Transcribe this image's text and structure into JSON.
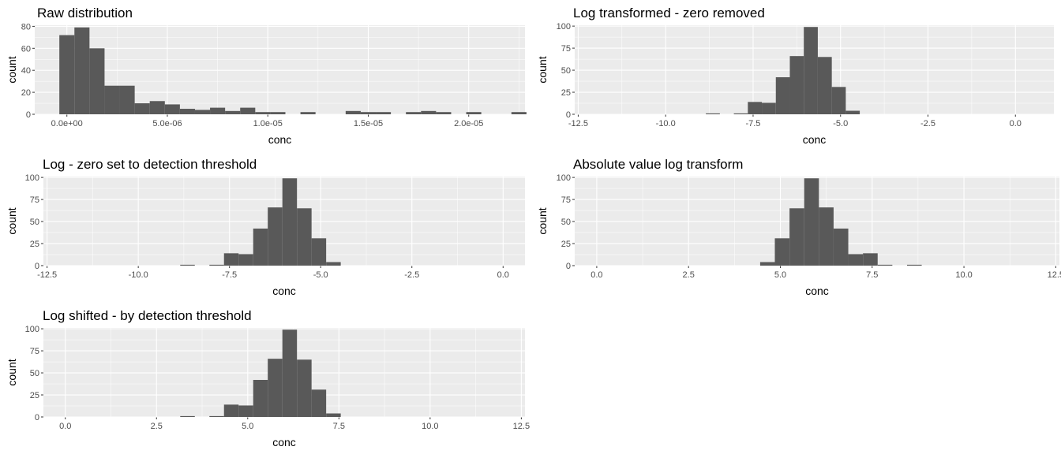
{
  "colors": {
    "panel": "#ebebeb",
    "grid_major": "#ffffff",
    "bar": "#595959",
    "tick_text": "#4d4d4d"
  },
  "chart_data": [
    {
      "type": "bar",
      "title": "Raw distribution",
      "xlabel": "conc",
      "ylabel": "count",
      "xlim": [
        -1.6e-06,
        2.28e-05
      ],
      "ylim": [
        0,
        81
      ],
      "x_ticks": [
        0,
        5e-06,
        1e-05,
        1.5e-05,
        2e-05
      ],
      "x_tick_labels": [
        "0.0e+00",
        "5.0e-06",
        "1.0e-05",
        "1.5e-05",
        "2.0e-05"
      ],
      "y_ticks": [
        0,
        20,
        40,
        60,
        80
      ],
      "y_tick_labels": [
        "0",
        "20",
        "40",
        "60",
        "80"
      ],
      "grid": true,
      "bins": {
        "start": -3.75e-07,
        "width": 7.5e-07,
        "counts": [
          72,
          79,
          60,
          26,
          26,
          10,
          12,
          9,
          5,
          4,
          6,
          3,
          6,
          2,
          2,
          0,
          2,
          0,
          0,
          3,
          2,
          2,
          0,
          2,
          3,
          2,
          0,
          2,
          0,
          0,
          2
        ]
      }
    },
    {
      "type": "bar",
      "title": "Log transformed - zero removed",
      "xlabel": "conc",
      "ylabel": "count",
      "xlim": [
        -12.6,
        1.1
      ],
      "ylim": [
        0,
        101
      ],
      "x_ticks": [
        -12.5,
        -10,
        -7.5,
        -5,
        -2.5,
        0
      ],
      "x_tick_labels": [
        "-12.5",
        "-10.0",
        "-7.5",
        "-5.0",
        "-2.5",
        "0.0"
      ],
      "y_ticks": [
        0,
        25,
        50,
        75,
        100
      ],
      "y_tick_labels": [
        "0",
        "25",
        "50",
        "75",
        "100"
      ],
      "grid": true,
      "bins": {
        "start": -8.85,
        "width": 0.4,
        "counts": [
          1,
          0,
          1,
          14,
          13,
          42,
          66,
          99,
          65,
          31,
          4
        ]
      }
    },
    {
      "type": "bar",
      "title": "Log - zero set to detection threshold",
      "xlabel": "conc",
      "ylabel": "count",
      "xlim": [
        -12.6,
        0.6
      ],
      "ylim": [
        0,
        101
      ],
      "x_ticks": [
        -12.5,
        -10,
        -7.5,
        -5,
        -2.5,
        0
      ],
      "x_tick_labels": [
        "-12.5",
        "-10.0",
        "-7.5",
        "-5.0",
        "-2.5",
        "0.0"
      ],
      "y_ticks": [
        0,
        25,
        50,
        75,
        100
      ],
      "y_tick_labels": [
        "0",
        "25",
        "50",
        "75",
        "100"
      ],
      "grid": true,
      "bins": {
        "start": -8.85,
        "width": 0.4,
        "counts": [
          1,
          0,
          1,
          14,
          13,
          42,
          66,
          99,
          65,
          31,
          4
        ]
      }
    },
    {
      "type": "bar",
      "title": "Absolute value log transform",
      "xlabel": "conc",
      "ylabel": "count",
      "xlim": [
        -0.6,
        12.6
      ],
      "ylim": [
        0,
        101
      ],
      "x_ticks": [
        0,
        2.5,
        5,
        7.5,
        10,
        12.5
      ],
      "x_tick_labels": [
        "0.0",
        "2.5",
        "5.0",
        "7.5",
        "10.0",
        "12.5"
      ],
      "y_ticks": [
        0,
        25,
        50,
        75,
        100
      ],
      "y_tick_labels": [
        "0",
        "25",
        "50",
        "75",
        "100"
      ],
      "grid": true,
      "bins": {
        "start": 4.45,
        "width": 0.4,
        "counts": [
          4,
          31,
          65,
          99,
          66,
          42,
          13,
          14,
          1,
          0,
          1
        ]
      }
    },
    {
      "type": "bar",
      "title": "Log shifted - by detection threshold",
      "xlabel": "conc",
      "ylabel": "count",
      "xlim": [
        -0.6,
        12.6
      ],
      "ylim": [
        0,
        101
      ],
      "x_ticks": [
        0,
        2.5,
        5,
        7.5,
        10,
        12.5
      ],
      "x_tick_labels": [
        "0.0",
        "2.5",
        "5.0",
        "7.5",
        "10.0",
        "12.5"
      ],
      "y_ticks": [
        0,
        25,
        50,
        75,
        100
      ],
      "y_tick_labels": [
        "0",
        "25",
        "50",
        "75",
        "100"
      ],
      "grid": true,
      "bins": {
        "start": 3.15,
        "width": 0.4,
        "counts": [
          1,
          0,
          1,
          14,
          13,
          42,
          66,
          99,
          65,
          31,
          4
        ]
      }
    }
  ]
}
